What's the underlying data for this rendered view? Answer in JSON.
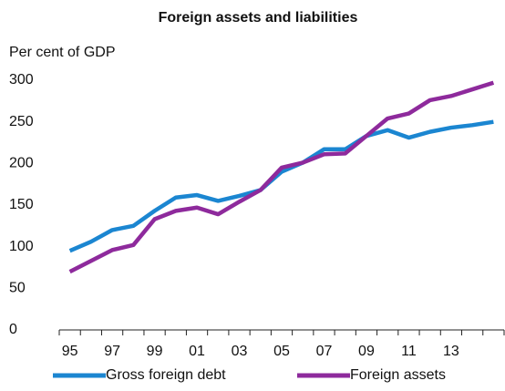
{
  "chart_data": {
    "type": "line",
    "title": "Foreign assets and liabilities",
    "y_label": "Per cent of GDP",
    "categories": [
      "95",
      null,
      "97",
      null,
      "99",
      null,
      "01",
      null,
      "03",
      null,
      "05",
      null,
      "07",
      null,
      "09",
      null,
      "11",
      null,
      "13",
      null,
      null
    ],
    "series": [
      {
        "name": "Gross foreign debt",
        "color": "#1b86d1",
        "values": [
          95,
          106,
          120,
          125,
          143,
          159,
          162,
          155,
          161,
          168,
          190,
          201,
          217,
          217,
          233,
          240,
          231,
          238,
          243,
          246,
          250
        ]
      },
      {
        "name": "Foreign assets",
        "color": "#8e2a9c",
        "values": [
          70,
          83,
          96,
          102,
          133,
          143,
          147,
          139,
          154,
          168,
          195,
          201,
          211,
          212,
          233,
          254,
          260,
          276,
          281,
          289,
          297
        ]
      }
    ],
    "ylim": [
      0,
      300
    ],
    "yticks": [
      0,
      50,
      100,
      150,
      200,
      250,
      300
    ],
    "grid": false,
    "legend": "bottom"
  }
}
